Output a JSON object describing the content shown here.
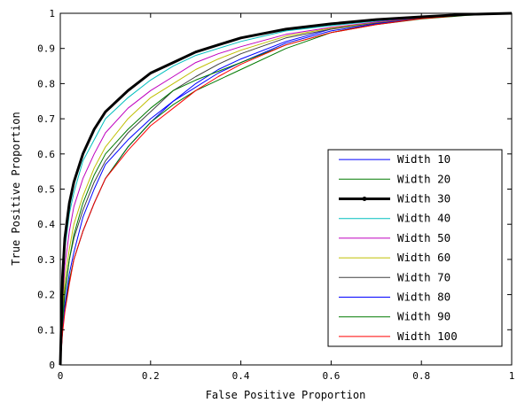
{
  "chart_data": {
    "type": "line",
    "title": "",
    "xlabel": "False Positive Proportion",
    "ylabel": "True Positive Proportion",
    "xlim": [
      0,
      1
    ],
    "ylim": [
      0,
      1
    ],
    "xticks": [
      0,
      0.2,
      0.4,
      0.6,
      0.8,
      1
    ],
    "xtick_labels": [
      "0",
      "0.2",
      "0.4",
      "0.6",
      "0.8",
      "1"
    ],
    "yticks": [
      0,
      0.1,
      0.2,
      0.3,
      0.4,
      0.5,
      0.6,
      0.7,
      0.8,
      0.9,
      1
    ],
    "ytick_labels": [
      "0",
      "0.1",
      "0.2",
      "0.3",
      "0.4",
      "0.5",
      "0.6",
      "0.7",
      "0.8",
      "0.9",
      "1"
    ],
    "grid": false,
    "legend_position": "lower-right",
    "x": [
      0,
      0.005,
      0.01,
      0.02,
      0.03,
      0.05,
      0.075,
      0.1,
      0.15,
      0.2,
      0.25,
      0.3,
      0.35,
      0.4,
      0.5,
      0.6,
      0.7,
      0.8,
      0.9,
      1
    ],
    "series": [
      {
        "name": "Width 10",
        "color": "#0000ff",
        "marker": false,
        "width": 1,
        "values": [
          0,
          0.1,
          0.16,
          0.24,
          0.3,
          0.38,
          0.46,
          0.53,
          0.62,
          0.69,
          0.75,
          0.8,
          0.84,
          0.87,
          0.92,
          0.955,
          0.975,
          0.99,
          0.996,
          1
        ]
      },
      {
        "name": "Width 20",
        "color": "#007a00",
        "marker": false,
        "width": 1,
        "values": [
          0,
          0.1,
          0.16,
          0.24,
          0.3,
          0.38,
          0.46,
          0.53,
          0.62,
          0.69,
          0.74,
          0.78,
          0.81,
          0.84,
          0.9,
          0.945,
          0.97,
          0.985,
          0.995,
          1
        ]
      },
      {
        "name": "Width 30",
        "color": "#000000",
        "marker": true,
        "width": 3,
        "values": [
          0,
          0.25,
          0.36,
          0.46,
          0.52,
          0.6,
          0.67,
          0.72,
          0.78,
          0.83,
          0.86,
          0.89,
          0.91,
          0.93,
          0.955,
          0.97,
          0.982,
          0.99,
          0.997,
          1
        ]
      },
      {
        "name": "Width 40",
        "color": "#00bfbf",
        "marker": false,
        "width": 1,
        "values": [
          0,
          0.22,
          0.33,
          0.43,
          0.49,
          0.58,
          0.64,
          0.7,
          0.76,
          0.81,
          0.85,
          0.88,
          0.9,
          0.92,
          0.95,
          0.965,
          0.978,
          0.988,
          0.996,
          1
        ]
      },
      {
        "name": "Width 50",
        "color": "#bf00bf",
        "marker": false,
        "width": 1,
        "values": [
          0,
          0.18,
          0.28,
          0.38,
          0.45,
          0.53,
          0.6,
          0.66,
          0.73,
          0.78,
          0.82,
          0.86,
          0.885,
          0.905,
          0.94,
          0.96,
          0.975,
          0.987,
          0.995,
          1
        ]
      },
      {
        "name": "Width 60",
        "color": "#bfbf00",
        "marker": false,
        "width": 1,
        "values": [
          0,
          0.15,
          0.24,
          0.33,
          0.4,
          0.48,
          0.56,
          0.62,
          0.7,
          0.76,
          0.8,
          0.84,
          0.87,
          0.895,
          0.935,
          0.958,
          0.973,
          0.986,
          0.995,
          1
        ]
      },
      {
        "name": "Width 70",
        "color": "#404040",
        "marker": false,
        "width": 1,
        "values": [
          0,
          0.13,
          0.21,
          0.3,
          0.36,
          0.44,
          0.52,
          0.58,
          0.66,
          0.72,
          0.78,
          0.82,
          0.855,
          0.885,
          0.93,
          0.955,
          0.972,
          0.986,
          0.995,
          1
        ]
      },
      {
        "name": "Width 80",
        "color": "#0000ff",
        "marker": false,
        "width": 1,
        "values": [
          0,
          0.1,
          0.17,
          0.26,
          0.32,
          0.42,
          0.5,
          0.57,
          0.64,
          0.7,
          0.75,
          0.79,
          0.83,
          0.86,
          0.915,
          0.95,
          0.97,
          0.985,
          0.995,
          1
        ]
      },
      {
        "name": "Width 90",
        "color": "#007a00",
        "marker": false,
        "width": 1,
        "values": [
          0,
          0.12,
          0.2,
          0.3,
          0.37,
          0.46,
          0.54,
          0.6,
          0.67,
          0.73,
          0.78,
          0.81,
          0.835,
          0.86,
          0.91,
          0.945,
          0.968,
          0.984,
          0.994,
          1
        ]
      },
      {
        "name": "Width 100",
        "color": "#ff0000",
        "marker": false,
        "width": 1,
        "values": [
          0,
          0.09,
          0.15,
          0.23,
          0.3,
          0.38,
          0.46,
          0.53,
          0.61,
          0.68,
          0.73,
          0.78,
          0.82,
          0.855,
          0.91,
          0.945,
          0.968,
          0.985,
          0.995,
          1
        ]
      }
    ]
  }
}
